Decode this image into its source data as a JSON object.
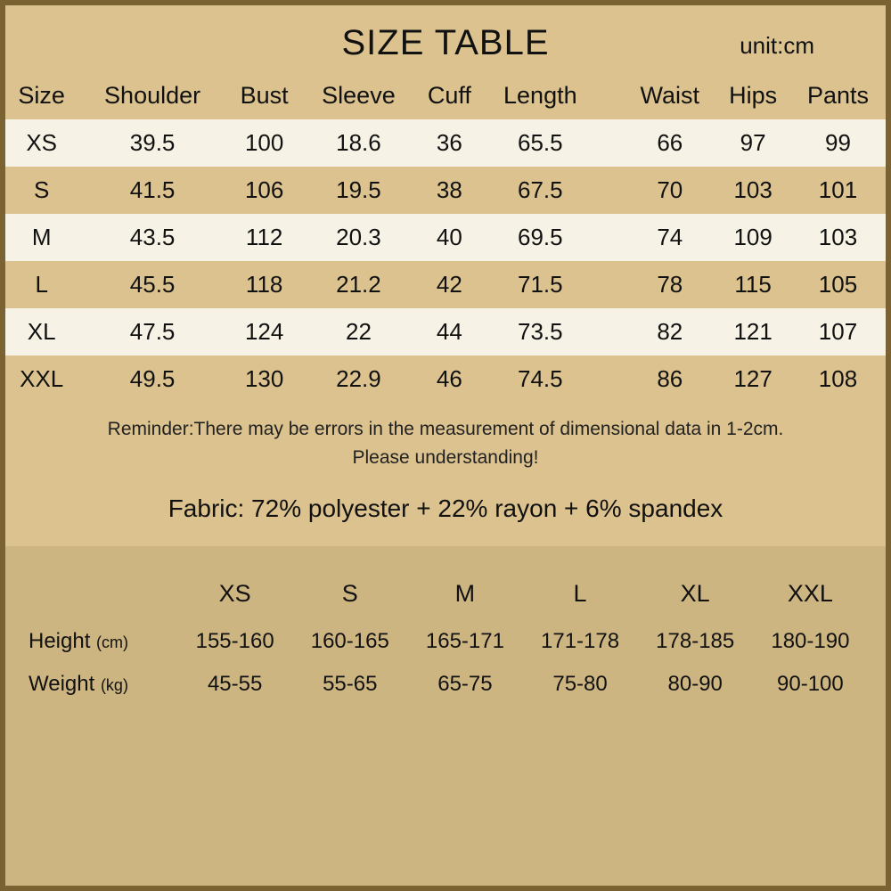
{
  "title": "SIZE TABLE",
  "unit_label": "unit:cm",
  "columns": [
    "Size",
    "Shoulder",
    "Bust",
    "Sleeve",
    "Cuff",
    "Length",
    "Waist",
    "Hips",
    "Pants"
  ],
  "rows": [
    [
      "XS",
      "39.5",
      "100",
      "18.6",
      "36",
      "65.5",
      "66",
      "97",
      "99"
    ],
    [
      "S",
      "41.5",
      "106",
      "19.5",
      "38",
      "67.5",
      "70",
      "103",
      "101"
    ],
    [
      "M",
      "43.5",
      "112",
      "20.3",
      "40",
      "69.5",
      "74",
      "109",
      "103"
    ],
    [
      "L",
      "45.5",
      "118",
      "21.2",
      "42",
      "71.5",
      "78",
      "115",
      "105"
    ],
    [
      "XL",
      "47.5",
      "124",
      "22",
      "44",
      "73.5",
      "82",
      "121",
      "107"
    ],
    [
      "XXL",
      "49.5",
      "130",
      "22.9",
      "46",
      "74.5",
      "86",
      "127",
      "108"
    ]
  ],
  "reminder_line1": "Reminder:There may be errors in the measurement of dimensional data in 1-2cm.",
  "reminder_line2": "Please understanding!",
  "fabric": "Fabric: 72% polyester + 22% rayon + 6% spandex",
  "hw_sizes": [
    "XS",
    "S",
    "M",
    "L",
    "XL",
    "XXL"
  ],
  "height_label": "Height",
  "height_unit": "(cm)",
  "weight_label": "Weight",
  "weight_unit": "(kg)",
  "height_values": [
    "155-160",
    "160-165",
    "165-171",
    "171-178",
    "178-185",
    "180-190"
  ],
  "weight_values": [
    "45-55",
    "55-65",
    "65-75",
    "75-80",
    "80-90",
    "90-100"
  ],
  "colors": {
    "border": "#7a6232",
    "bg_main": "#dbc28e",
    "row_light": "#f7f2e6",
    "hw_bg": "#cdb581"
  }
}
